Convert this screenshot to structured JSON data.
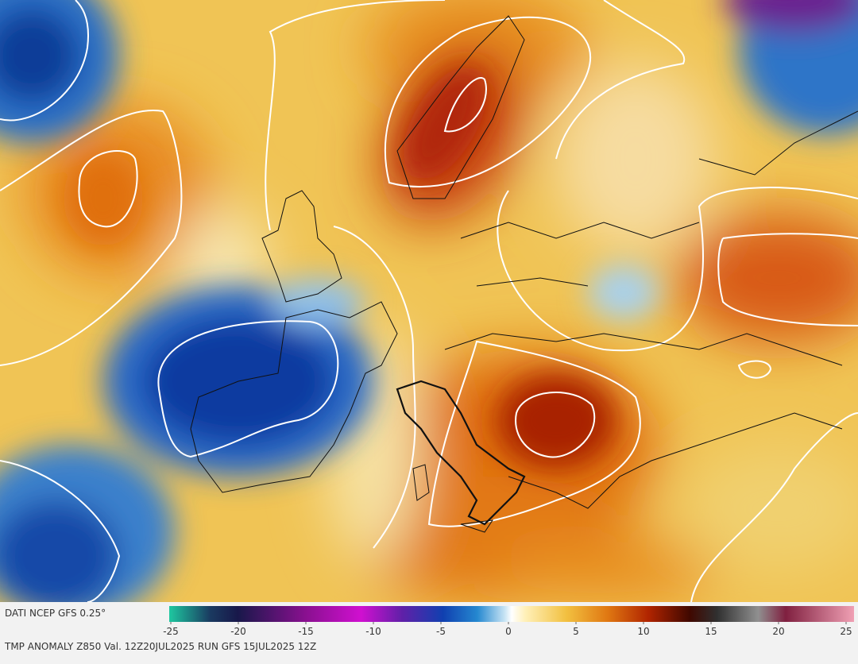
{
  "header": {
    "source": "DATI NCEP GFS 0.25°"
  },
  "footer": {
    "caption": "TMP ANOMALY Z850 Val. 12Z20JUL2025 RUN GFS 15JUL2025 12Z"
  },
  "colorbar": {
    "range": [
      -25,
      25
    ],
    "ticks": [
      -25,
      -20,
      -15,
      -10,
      -5,
      0,
      5,
      10,
      15,
      20,
      25
    ]
  }
}
